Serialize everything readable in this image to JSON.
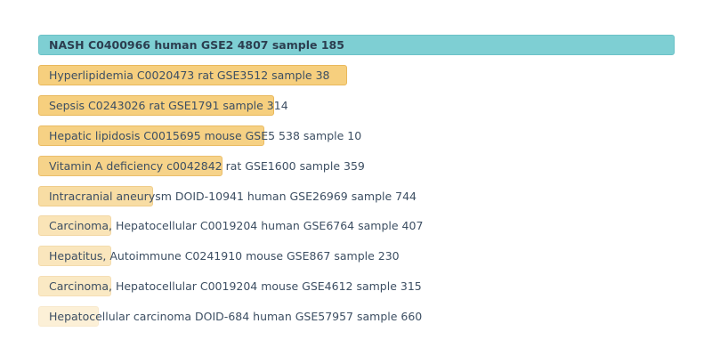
{
  "chart_data": {
    "type": "bar",
    "orientation": "horizontal",
    "title": "",
    "xlabel": "",
    "ylabel": "",
    "grid": false,
    "legend": "none",
    "xlim": [
      0,
      1
    ],
    "categories": [
      "NASH C0400966 human GSE2 4807 sample 185",
      "Hyperlipidemia C0020473 rat GSE3512 sample 38",
      "Sepsis C0243026 rat GSE1791 sample 314",
      "Hepatic lipidosis C0015695 mouse GSE5 538 sample 10",
      "Vitamin A deficiency c0042842 rat GSE1600 sample 359",
      "Intracranial aneurysm DOID-10941 human GSE26969 sample 744",
      "Carcinoma, Hepatocellular C0019204 human GSE6764 sample 407",
      "Hepatitus, Autoimmune C0241910 mouse GSE867 sample 230",
      "Carcinoma, Hepatocellular C0019204 mouse GSE4612 sample 315",
      "Hepatocellular carcinoma DOID-684 human GSE57957 sample 660"
    ],
    "values": [
      1.0,
      0.485,
      0.37,
      0.355,
      0.29,
      0.18,
      0.115,
      0.115,
      0.115,
      0.095
    ],
    "colors": {
      "top": "#7ecfd3",
      "top_border": "#6bc2c7",
      "rest": "#f6cf7e",
      "rest_border": "#e9b85b",
      "label": "#3d4f63"
    },
    "opacity": [
      1.0,
      1.0,
      1.0,
      0.95,
      0.9,
      0.7,
      0.55,
      0.5,
      0.45,
      0.3
    ]
  }
}
